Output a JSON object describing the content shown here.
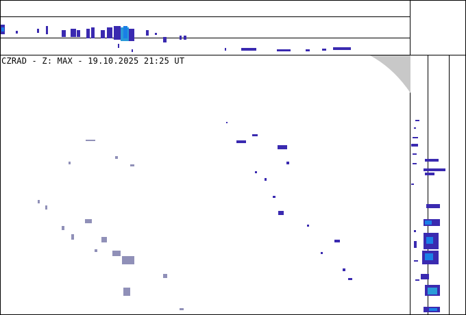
{
  "map": {
    "title": "CZRAD - Z: MAX - 19.10.2025 21:25 UT"
  },
  "colors": {
    "frame": "#000000",
    "echo_weak": "#9090b8",
    "echo_mid": "#3a2ab0",
    "echo_strong": "#1a7fe6",
    "echo_core": "#2a9bd8",
    "out_of_range": "#c8c8c8"
  }
}
